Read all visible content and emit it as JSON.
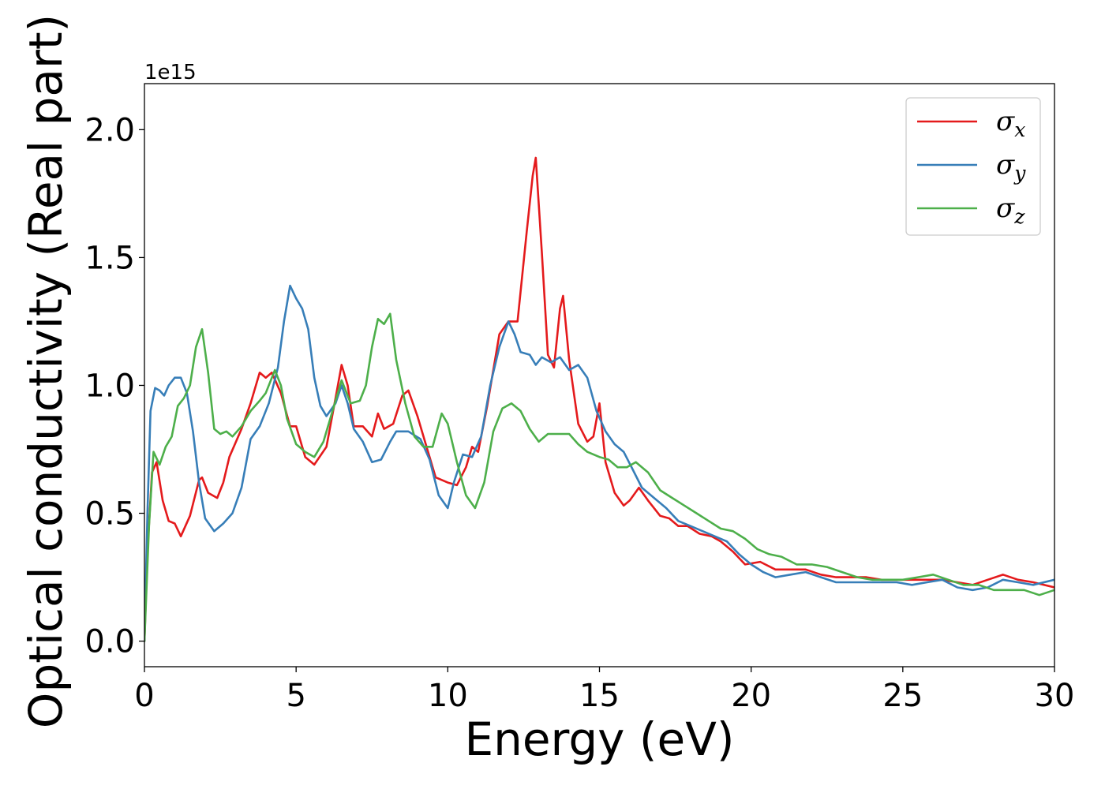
{
  "chart_data": {
    "type": "line",
    "xlabel": "Energy (eV)",
    "ylabel": "Optical conductivity (Real part)",
    "y_offset_label": "1e15",
    "xlim": [
      0,
      30
    ],
    "ylim": [
      -0.1,
      2.18
    ],
    "x_ticks": [
      0,
      5,
      10,
      15,
      20,
      25,
      30
    ],
    "x_tick_labels": [
      "0",
      "5",
      "10",
      "15",
      "20",
      "25",
      "30"
    ],
    "y_ticks": [
      0.0,
      0.5,
      1.0,
      1.5,
      2.0
    ],
    "y_tick_labels": [
      "0.0",
      "0.5",
      "1.0",
      "1.5",
      "2.0"
    ],
    "grid": false,
    "legend_position": "top-right",
    "series": [
      {
        "name": "σx",
        "legend_base": "σ",
        "legend_sub": "x",
        "color": "#e41a1c",
        "points": [
          [
            0,
            0
          ],
          [
            0.1,
            0.35
          ],
          [
            0.25,
            0.66
          ],
          [
            0.4,
            0.7
          ],
          [
            0.6,
            0.55
          ],
          [
            0.8,
            0.47
          ],
          [
            1.0,
            0.46
          ],
          [
            1.2,
            0.41
          ],
          [
            1.5,
            0.49
          ],
          [
            1.8,
            0.63
          ],
          [
            1.9,
            0.64
          ],
          [
            2.1,
            0.58
          ],
          [
            2.4,
            0.56
          ],
          [
            2.6,
            0.62
          ],
          [
            2.8,
            0.72
          ],
          [
            3.2,
            0.83
          ],
          [
            3.5,
            0.93
          ],
          [
            3.8,
            1.05
          ],
          [
            4.0,
            1.03
          ],
          [
            4.2,
            1.05
          ],
          [
            4.5,
            0.97
          ],
          [
            4.8,
            0.84
          ],
          [
            5.0,
            0.84
          ],
          [
            5.3,
            0.72
          ],
          [
            5.6,
            0.69
          ],
          [
            6.0,
            0.76
          ],
          [
            6.3,
            0.95
          ],
          [
            6.5,
            1.08
          ],
          [
            6.7,
            1.0
          ],
          [
            6.9,
            0.84
          ],
          [
            7.2,
            0.84
          ],
          [
            7.5,
            0.8
          ],
          [
            7.7,
            0.89
          ],
          [
            7.9,
            0.83
          ],
          [
            8.2,
            0.85
          ],
          [
            8.5,
            0.96
          ],
          [
            8.7,
            0.98
          ],
          [
            9.0,
            0.88
          ],
          [
            9.3,
            0.76
          ],
          [
            9.6,
            0.64
          ],
          [
            10.0,
            0.62
          ],
          [
            10.3,
            0.61
          ],
          [
            10.6,
            0.68
          ],
          [
            10.8,
            0.76
          ],
          [
            11.0,
            0.74
          ],
          [
            11.3,
            0.92
          ],
          [
            11.7,
            1.2
          ],
          [
            12.0,
            1.25
          ],
          [
            12.3,
            1.25
          ],
          [
            12.6,
            1.6
          ],
          [
            12.8,
            1.82
          ],
          [
            12.9,
            1.89
          ],
          [
            13.1,
            1.52
          ],
          [
            13.3,
            1.12
          ],
          [
            13.5,
            1.07
          ],
          [
            13.7,
            1.3
          ],
          [
            13.8,
            1.35
          ],
          [
            14.0,
            1.1
          ],
          [
            14.3,
            0.85
          ],
          [
            14.6,
            0.78
          ],
          [
            14.8,
            0.8
          ],
          [
            15.0,
            0.93
          ],
          [
            15.2,
            0.7
          ],
          [
            15.5,
            0.58
          ],
          [
            15.8,
            0.53
          ],
          [
            16.0,
            0.55
          ],
          [
            16.3,
            0.6
          ],
          [
            16.6,
            0.55
          ],
          [
            17.0,
            0.49
          ],
          [
            17.3,
            0.48
          ],
          [
            17.6,
            0.45
          ],
          [
            17.9,
            0.45
          ],
          [
            18.3,
            0.42
          ],
          [
            18.7,
            0.41
          ],
          [
            19.0,
            0.39
          ],
          [
            19.4,
            0.35
          ],
          [
            19.8,
            0.3
          ],
          [
            20.3,
            0.31
          ],
          [
            20.8,
            0.28
          ],
          [
            21.3,
            0.28
          ],
          [
            21.8,
            0.28
          ],
          [
            22.3,
            0.26
          ],
          [
            22.8,
            0.25
          ],
          [
            23.3,
            0.25
          ],
          [
            23.8,
            0.25
          ],
          [
            24.3,
            0.24
          ],
          [
            24.8,
            0.24
          ],
          [
            25.3,
            0.24
          ],
          [
            25.8,
            0.24
          ],
          [
            26.3,
            0.24
          ],
          [
            26.8,
            0.23
          ],
          [
            27.3,
            0.22
          ],
          [
            27.8,
            0.24
          ],
          [
            28.3,
            0.26
          ],
          [
            28.8,
            0.24
          ],
          [
            29.3,
            0.23
          ],
          [
            30.0,
            0.21
          ]
        ]
      },
      {
        "name": "σy",
        "legend_base": "σ",
        "legend_sub": "y",
        "color": "#377eb8",
        "points": [
          [
            0,
            0
          ],
          [
            0.1,
            0.5
          ],
          [
            0.2,
            0.9
          ],
          [
            0.35,
            0.99
          ],
          [
            0.5,
            0.98
          ],
          [
            0.65,
            0.96
          ],
          [
            0.8,
            1.0
          ],
          [
            1.0,
            1.03
          ],
          [
            1.2,
            1.03
          ],
          [
            1.4,
            0.97
          ],
          [
            1.6,
            0.82
          ],
          [
            1.8,
            0.62
          ],
          [
            2.0,
            0.48
          ],
          [
            2.3,
            0.43
          ],
          [
            2.6,
            0.46
          ],
          [
            2.9,
            0.5
          ],
          [
            3.2,
            0.6
          ],
          [
            3.5,
            0.79
          ],
          [
            3.8,
            0.84
          ],
          [
            4.1,
            0.93
          ],
          [
            4.4,
            1.07
          ],
          [
            4.6,
            1.25
          ],
          [
            4.8,
            1.39
          ],
          [
            5.0,
            1.34
          ],
          [
            5.2,
            1.3
          ],
          [
            5.4,
            1.22
          ],
          [
            5.6,
            1.03
          ],
          [
            5.8,
            0.92
          ],
          [
            6.0,
            0.88
          ],
          [
            6.3,
            0.93
          ],
          [
            6.5,
            1.0
          ],
          [
            6.7,
            0.93
          ],
          [
            6.9,
            0.83
          ],
          [
            7.2,
            0.78
          ],
          [
            7.5,
            0.7
          ],
          [
            7.8,
            0.71
          ],
          [
            8.1,
            0.78
          ],
          [
            8.3,
            0.82
          ],
          [
            8.7,
            0.82
          ],
          [
            9.1,
            0.79
          ],
          [
            9.4,
            0.71
          ],
          [
            9.7,
            0.57
          ],
          [
            10.0,
            0.52
          ],
          [
            10.2,
            0.62
          ],
          [
            10.5,
            0.73
          ],
          [
            10.8,
            0.72
          ],
          [
            11.1,
            0.8
          ],
          [
            11.4,
            1.0
          ],
          [
            11.7,
            1.15
          ],
          [
            12.0,
            1.25
          ],
          [
            12.2,
            1.2
          ],
          [
            12.4,
            1.13
          ],
          [
            12.7,
            1.12
          ],
          [
            12.9,
            1.08
          ],
          [
            13.1,
            1.11
          ],
          [
            13.4,
            1.09
          ],
          [
            13.7,
            1.11
          ],
          [
            14.0,
            1.06
          ],
          [
            14.3,
            1.08
          ],
          [
            14.6,
            1.03
          ],
          [
            14.9,
            0.9
          ],
          [
            15.2,
            0.82
          ],
          [
            15.5,
            0.77
          ],
          [
            15.8,
            0.74
          ],
          [
            16.1,
            0.67
          ],
          [
            16.4,
            0.6
          ],
          [
            16.8,
            0.56
          ],
          [
            17.2,
            0.52
          ],
          [
            17.6,
            0.47
          ],
          [
            18.0,
            0.45
          ],
          [
            18.4,
            0.43
          ],
          [
            18.8,
            0.41
          ],
          [
            19.2,
            0.39
          ],
          [
            19.6,
            0.34
          ],
          [
            20.0,
            0.3
          ],
          [
            20.4,
            0.27
          ],
          [
            20.8,
            0.25
          ],
          [
            21.3,
            0.26
          ],
          [
            21.8,
            0.27
          ],
          [
            22.3,
            0.25
          ],
          [
            22.8,
            0.23
          ],
          [
            23.3,
            0.23
          ],
          [
            23.8,
            0.23
          ],
          [
            24.3,
            0.23
          ],
          [
            24.8,
            0.23
          ],
          [
            25.3,
            0.22
          ],
          [
            25.8,
            0.23
          ],
          [
            26.3,
            0.24
          ],
          [
            26.8,
            0.21
          ],
          [
            27.3,
            0.2
          ],
          [
            27.8,
            0.21
          ],
          [
            28.3,
            0.24
          ],
          [
            28.8,
            0.23
          ],
          [
            29.3,
            0.22
          ],
          [
            30.0,
            0.24
          ]
        ]
      },
      {
        "name": "σz",
        "legend_base": "σ",
        "legend_sub": "z",
        "color": "#4daf4a",
        "points": [
          [
            0,
            0
          ],
          [
            0.15,
            0.45
          ],
          [
            0.3,
            0.74
          ],
          [
            0.5,
            0.69
          ],
          [
            0.7,
            0.76
          ],
          [
            0.9,
            0.8
          ],
          [
            1.1,
            0.92
          ],
          [
            1.3,
            0.95
          ],
          [
            1.5,
            1.0
          ],
          [
            1.7,
            1.15
          ],
          [
            1.9,
            1.22
          ],
          [
            2.1,
            1.05
          ],
          [
            2.3,
            0.83
          ],
          [
            2.5,
            0.81
          ],
          [
            2.7,
            0.82
          ],
          [
            2.9,
            0.8
          ],
          [
            3.2,
            0.84
          ],
          [
            3.5,
            0.9
          ],
          [
            3.8,
            0.94
          ],
          [
            4.0,
            0.97
          ],
          [
            4.3,
            1.06
          ],
          [
            4.5,
            1.0
          ],
          [
            4.7,
            0.87
          ],
          [
            5.0,
            0.77
          ],
          [
            5.3,
            0.74
          ],
          [
            5.6,
            0.72
          ],
          [
            5.9,
            0.78
          ],
          [
            6.2,
            0.9
          ],
          [
            6.5,
            1.02
          ],
          [
            6.8,
            0.93
          ],
          [
            7.1,
            0.94
          ],
          [
            7.3,
            1.0
          ],
          [
            7.5,
            1.15
          ],
          [
            7.7,
            1.26
          ],
          [
            7.9,
            1.24
          ],
          [
            8.1,
            1.28
          ],
          [
            8.3,
            1.1
          ],
          [
            8.6,
            0.93
          ],
          [
            8.9,
            0.8
          ],
          [
            9.2,
            0.76
          ],
          [
            9.5,
            0.76
          ],
          [
            9.8,
            0.89
          ],
          [
            10.0,
            0.85
          ],
          [
            10.3,
            0.7
          ],
          [
            10.6,
            0.57
          ],
          [
            10.9,
            0.52
          ],
          [
            11.2,
            0.62
          ],
          [
            11.5,
            0.82
          ],
          [
            11.8,
            0.91
          ],
          [
            12.1,
            0.93
          ],
          [
            12.4,
            0.9
          ],
          [
            12.7,
            0.83
          ],
          [
            13.0,
            0.78
          ],
          [
            13.3,
            0.81
          ],
          [
            13.6,
            0.81
          ],
          [
            14.0,
            0.81
          ],
          [
            14.3,
            0.77
          ],
          [
            14.6,
            0.74
          ],
          [
            15.0,
            0.72
          ],
          [
            15.3,
            0.71
          ],
          [
            15.6,
            0.68
          ],
          [
            15.9,
            0.68
          ],
          [
            16.2,
            0.7
          ],
          [
            16.6,
            0.66
          ],
          [
            17.0,
            0.59
          ],
          [
            17.4,
            0.56
          ],
          [
            17.8,
            0.53
          ],
          [
            18.2,
            0.5
          ],
          [
            18.6,
            0.47
          ],
          [
            19.0,
            0.44
          ],
          [
            19.4,
            0.43
          ],
          [
            19.8,
            0.4
          ],
          [
            20.2,
            0.36
          ],
          [
            20.6,
            0.34
          ],
          [
            21.0,
            0.33
          ],
          [
            21.5,
            0.3
          ],
          [
            22.0,
            0.3
          ],
          [
            22.5,
            0.29
          ],
          [
            23.0,
            0.27
          ],
          [
            23.5,
            0.25
          ],
          [
            24.0,
            0.24
          ],
          [
            24.5,
            0.24
          ],
          [
            25.0,
            0.24
          ],
          [
            25.5,
            0.25
          ],
          [
            26.0,
            0.26
          ],
          [
            26.5,
            0.24
          ],
          [
            27.0,
            0.22
          ],
          [
            27.5,
            0.22
          ],
          [
            28.0,
            0.2
          ],
          [
            28.5,
            0.2
          ],
          [
            29.0,
            0.2
          ],
          [
            29.5,
            0.18
          ],
          [
            30.0,
            0.2
          ]
        ]
      }
    ]
  }
}
